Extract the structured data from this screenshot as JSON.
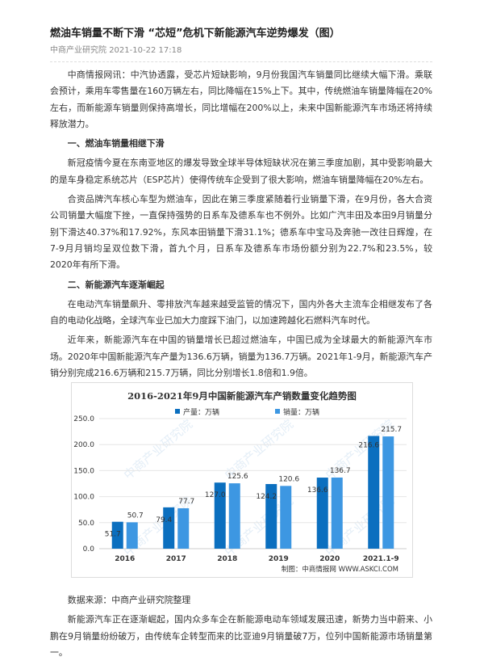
{
  "article": {
    "title": "燃油车销量不断下滑 “芯短”危机下新能源汽车逆势爆发（图）",
    "source": "中商产业研究院",
    "datetime": "2021-10-22 17:18",
    "paragraphs": [
      "中商情报网讯：中汽协透露，受芯片短缺影响，9月份我国汽车销量同比继续大幅下滑。乘联会预计，乘用车零售量在160万辆左右，同比降幅在15%上下。其中，传统燃油车销量降幅在20%左右，而新能源车销量则保持高增长，同比增幅在200%以上，未来中国新能源汽车市场还将持续释放潜力。",
      "一、燃油车销量相继下滑",
      "新冠疫情今夏在东南亚地区的爆发导致全球半导体短缺状况在第三季度加剧，其中受影响最大的是车身稳定系统芯片（ESP芯片）使得传统车企受到了很大影响，燃油车销量降幅在20%左右。",
      "合资品牌汽车核心车型为燃油车，因此在第三季度紧随着行业销量下滑，在9月份，各大合资公司销量大幅度下挫，一直保持强势的日系车及德系车也不例外。比如广汽丰田及本田9月销量分别下滑达40.37%和17.92%，东风本田销量下滑31.1%；德系车中宝马及奔驰一改往日辉煌，在7-9月月销均呈双位数下滑，首九个月，日系车及德系车市场份额分别为22.7%和23.5%，较2020年有所下滑。",
      "二、新能源汽车逐渐崛起",
      "在电动汽车销量飙升、零排放汽车越来越受监管的情况下，国内外各大主流车企相继发布了各自的电动化战略，全球汽车业已加大力度踩下油门，以加速跨越化石燃料汽车时代。",
      "近年来，新能源汽车在中国的销量增长已超过燃油车，中国已成为全球最大的新能源汽车市场。2020年中国新能源汽车产量为136.6万辆，销量为136.7万辆。2021年1-9月，新能源汽车产销分别完成216.6万辆和215.7万辆，同比分别增长1.8倍和1.9倍。",
      "数据来源：中商产业研究院整理",
      "新能源汽车正在逐渐崛起，国内众多车企在新能源电动车领域发展迅速，新势力当中蔚来、小鹏在9月销量纷纷破万，由传统车企转型而来的比亚迪9月销量破7万，位列中国新能源市场销量第一。"
    ]
  },
  "chart_data": {
    "type": "bar",
    "title": "2016-2021年9月中国新能源汽车产销数量变化趋势图",
    "categories": [
      "2016",
      "2017",
      "2018",
      "2019",
      "2020",
      "2021.1-9"
    ],
    "series": [
      {
        "name": "产量：万辆",
        "values": [
          51.7,
          79.4,
          127.0,
          124.2,
          136.6,
          216.6
        ],
        "color": "#0b6fbf"
      },
      {
        "name": "销量：万辆",
        "values": [
          50.7,
          77.7,
          125.6,
          120.6,
          136.7,
          215.7
        ],
        "color": "#3d97e2"
      }
    ],
    "yticks": [
      "0.0",
      "50.0",
      "100.0",
      "150.0",
      "200.0",
      "250.0"
    ],
    "ylim": [
      0,
      250
    ],
    "grid": true,
    "legend": "top",
    "credit": "制图：中商情报网 WWW.ASKCI.COM",
    "watermark": "中商产业研究院"
  }
}
